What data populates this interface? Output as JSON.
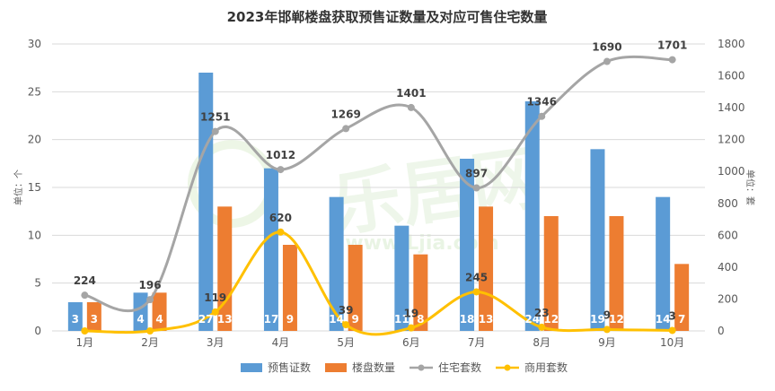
{
  "chart_data": {
    "type": "bar",
    "title": "2023年邯郸楼盘获取预售证数量及对应可售住宅数量",
    "categories": [
      "1月",
      "2月",
      "3月",
      "4月",
      "5月",
      "6月",
      "7月",
      "8月",
      "9月",
      "10月"
    ],
    "left_axis": {
      "label": "单位：个",
      "min": 0,
      "max": 30,
      "ticks": [
        0,
        5,
        10,
        15,
        20,
        25,
        30
      ]
    },
    "right_axis": {
      "label": "单位：套",
      "min": 0,
      "max": 1800,
      "ticks": [
        0,
        200,
        400,
        600,
        800,
        1000,
        1200,
        1400,
        1600,
        1800
      ]
    },
    "grid": true,
    "legend_position": "bottom",
    "watermark": "乐居网 www.Ljia.com",
    "series": [
      {
        "name": "预售证数",
        "type": "bar",
        "axis": "left",
        "color": "#5B9BD5",
        "values": [
          3,
          4,
          27,
          17,
          14,
          11,
          18,
          24,
          19,
          14
        ]
      },
      {
        "name": "楼盘数量",
        "type": "bar",
        "axis": "left",
        "color": "#ED7D31",
        "values": [
          3,
          4,
          13,
          9,
          9,
          8,
          13,
          12,
          12,
          7
        ]
      },
      {
        "name": "住宅套数",
        "type": "line",
        "axis": "right",
        "color": "#A5A5A5",
        "values": [
          224,
          196,
          1251,
          1012,
          1269,
          1401,
          897,
          1346,
          1690,
          1701
        ]
      },
      {
        "name": "商用套数",
        "type": "line",
        "axis": "right",
        "color": "#FFC000",
        "values": [
          0,
          0,
          119,
          620,
          39,
          19,
          245,
          23,
          9,
          3
        ]
      }
    ],
    "data_labels": {
      "商用套数": [
        "",
        "",
        "119",
        "620",
        "39",
        "19",
        "245",
        "23",
        "9",
        "3"
      ]
    }
  }
}
